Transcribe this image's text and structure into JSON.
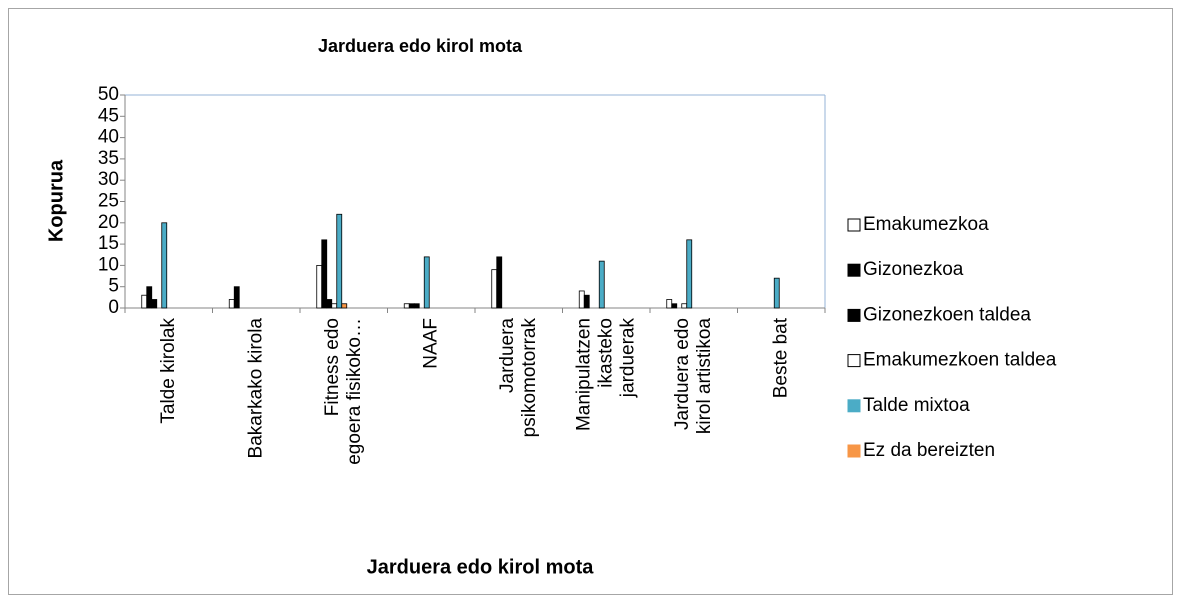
{
  "chart_data": {
    "type": "bar",
    "title": "Jarduera edo kirol mota",
    "x_label": "Jarduera edo kirol mota",
    "y_label": "Kopurua",
    "categories": [
      "Talde kirolak",
      "Bakarkako kirola",
      "Fitness edo egoera fisikoko…",
      "NAAF",
      "Jarduera psikomotorrak",
      "Manipulatzen ikasteko jarduerak",
      "Jarduera edo kirol artistikoa",
      "Beste bat"
    ],
    "series": [
      {
        "name": "Emakumezkoa",
        "color": "#ffffff",
        "values": [
          3,
          2,
          10,
          1,
          9,
          4,
          2,
          0
        ]
      },
      {
        "name": "Gizonezkoa",
        "color": "#000000",
        "values": [
          5,
          5,
          16,
          1,
          12,
          3,
          1,
          0
        ]
      },
      {
        "name": "Gizonezkoen taldea",
        "color": "#000000",
        "values": [
          2,
          0,
          2,
          1,
          0,
          0,
          0,
          0
        ]
      },
      {
        "name": "Emakumezkoen taldea",
        "color": "#ffffff",
        "values": [
          0,
          0,
          1,
          0,
          0,
          0,
          1,
          0
        ]
      },
      {
        "name": "Talde mixtoa",
        "color": "#4bacc6",
        "values": [
          20,
          0,
          22,
          12,
          0,
          11,
          16,
          7
        ]
      },
      {
        "name": "Ez da bereizten",
        "color": "#f79646",
        "values": [
          0,
          0,
          1,
          0,
          0,
          0,
          0,
          0
        ]
      }
    ],
    "ylim": [
      0,
      50
    ],
    "yticks": [
      0,
      5,
      10,
      15,
      20,
      25,
      30,
      35,
      40,
      45,
      50
    ],
    "grid": false,
    "legend": "right"
  }
}
